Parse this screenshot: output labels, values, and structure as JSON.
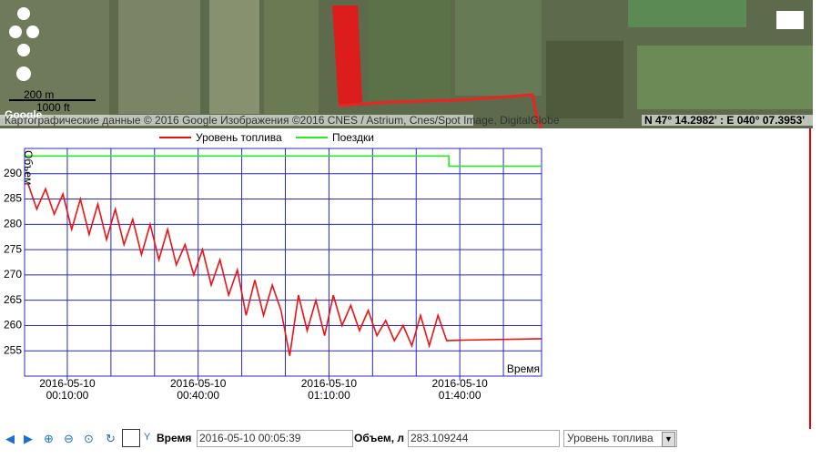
{
  "map": {
    "scale_m": "200 m",
    "scale_ft": "1000 ft",
    "logo": "Google",
    "attribution": "Картографические данные © 2016 Google Изображения ©2016 CNES / Astrium, Cnes/Spot Image, DigitalGlobe",
    "coordinates": "N 47° 14.2982' : E 040° 07.3953'"
  },
  "chart_data": {
    "type": "line",
    "y_label": "Объем",
    "x_label": "Время",
    "grid": true,
    "legend": "top",
    "ylim": [
      250,
      295
    ],
    "yticks": [
      255,
      260,
      265,
      270,
      275,
      280,
      285,
      290
    ],
    "xlim": [
      "2016-05-10 00:00:12",
      "2016-05-10 01:58:45"
    ],
    "xticks": [
      {
        "value": "2016-05-10 00:10:00",
        "label": [
          "2016-05-10",
          "00:10:00"
        ]
      },
      {
        "value": "2016-05-10 00:40:00",
        "label": [
          "2016-05-10",
          "00:40:00"
        ]
      },
      {
        "value": "2016-05-10 01:10:00",
        "label": [
          "2016-05-10",
          "01:10:00"
        ]
      },
      {
        "value": "2016-05-10 01:40:00",
        "label": [
          "2016-05-10",
          "01:40:00"
        ]
      }
    ],
    "xgrid": [
      "2016-05-10 00:10:00",
      "2016-05-10 00:20:00",
      "2016-05-10 00:30:00",
      "2016-05-10 00:40:00",
      "2016-05-10 00:50:00",
      "2016-05-10 01:00:00",
      "2016-05-10 01:10:00",
      "2016-05-10 01:20:00",
      "2016-05-10 01:30:00",
      "2016-05-10 01:40:00",
      "2016-05-10 01:50:00"
    ],
    "series": [
      {
        "name": "Уровень топлива",
        "color": "#ee1111",
        "x": [
          "2016-05-10 00:01:00",
          "2016-05-10 00:03:00",
          "2016-05-10 00:05:00",
          "2016-05-10 00:07:00",
          "2016-05-10 00:09:00",
          "2016-05-10 00:11:00",
          "2016-05-10 00:13:00",
          "2016-05-10 00:15:00",
          "2016-05-10 00:17:00",
          "2016-05-10 00:19:00",
          "2016-05-10 00:21:00",
          "2016-05-10 00:23:00",
          "2016-05-10 00:25:00",
          "2016-05-10 00:27:00",
          "2016-05-10 00:29:00",
          "2016-05-10 00:31:00",
          "2016-05-10 00:33:00",
          "2016-05-10 00:35:00",
          "2016-05-10 00:37:00",
          "2016-05-10 00:39:00",
          "2016-05-10 00:41:00",
          "2016-05-10 00:43:00",
          "2016-05-10 00:45:00",
          "2016-05-10 00:47:00",
          "2016-05-10 00:49:00",
          "2016-05-10 00:51:00",
          "2016-05-10 00:53:00",
          "2016-05-10 00:55:00",
          "2016-05-10 00:57:00",
          "2016-05-10 00:59:00",
          "2016-05-10 01:01:00",
          "2016-05-10 01:03:00",
          "2016-05-10 01:05:00",
          "2016-05-10 01:07:00",
          "2016-05-10 01:09:00",
          "2016-05-10 01:11:00",
          "2016-05-10 01:13:00",
          "2016-05-10 01:15:00",
          "2016-05-10 01:17:00",
          "2016-05-10 01:19:00",
          "2016-05-10 01:21:00",
          "2016-05-10 01:23:00",
          "2016-05-10 01:25:00",
          "2016-05-10 01:27:00",
          "2016-05-10 01:29:00",
          "2016-05-10 01:31:00",
          "2016-05-10 01:33:00",
          "2016-05-10 01:35:00",
          "2016-05-10 01:37:00",
          "2016-05-10 01:40:00",
          "2016-05-10 01:58:40"
        ],
        "values": [
          288,
          283,
          287,
          282,
          286,
          279,
          285,
          278,
          284,
          277,
          283,
          276,
          281,
          274,
          280,
          273,
          279,
          272,
          276,
          270,
          275,
          268,
          273,
          266,
          271,
          262,
          269,
          262,
          268,
          263,
          254,
          266,
          259,
          265,
          258,
          266,
          260,
          264,
          259,
          263,
          258,
          261,
          257,
          260,
          256,
          262,
          256,
          262,
          257,
          257.1,
          257.4
        ]
      },
      {
        "name": "Поездки",
        "color": "#22ee22",
        "x": [
          "2016-05-10 00:00:12",
          "2016-05-10 01:37:30",
          "2016-05-10 01:37:30",
          "2016-05-10 01:58:45"
        ],
        "values": [
          293.5,
          293.5,
          291.5,
          291.5
        ]
      }
    ]
  },
  "toolbar": {
    "time_label": "Время",
    "time_value": "2016-05-10 00:05:39",
    "volume_label": "Объем, л",
    "volume_value": "283.109244",
    "select_value": "Уровень топлива"
  }
}
